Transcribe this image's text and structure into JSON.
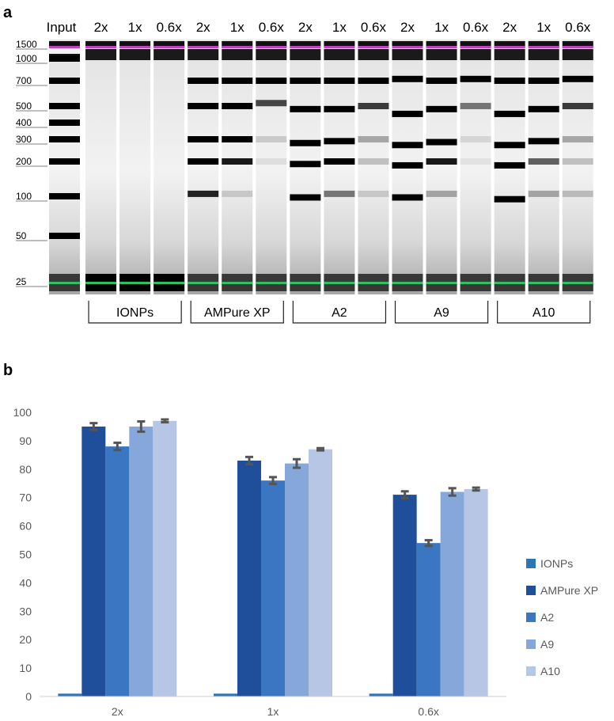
{
  "panel_a": {
    "label": "a",
    "lane_headers": [
      "Input",
      "2x",
      "1x",
      "0.6x",
      "2x",
      "1x",
      "0.6x",
      "2x",
      "1x",
      "0.6x",
      "2x",
      "1x",
      "0.6x",
      "2x",
      "1x",
      "0.6x"
    ],
    "ladder_labels": [
      "1500",
      "1000",
      "700",
      "500",
      "400",
      "300",
      "200",
      "100",
      "50",
      "25"
    ],
    "ladder_sizes_bp": [
      1500,
      1000,
      700,
      500,
      400,
      300,
      200,
      100,
      50,
      25
    ],
    "groups": [
      "IONPs",
      "AMPure XP",
      "A2",
      "A9",
      "A10"
    ],
    "marker_colors": {
      "upper": "#c040c0",
      "lower": "#30c060"
    }
  },
  "panel_b": {
    "label": "b",
    "chart_data": {
      "type": "bar",
      "categories": [
        "2x",
        "1x",
        "0.6x"
      ],
      "series": [
        {
          "name": "IONPs",
          "values": [
            1,
            1,
            1
          ],
          "errors": [
            0,
            0,
            0
          ],
          "color": "#2e75b6"
        },
        {
          "name": "AMPure XP",
          "values": [
            95,
            83,
            71
          ],
          "errors": [
            1.2,
            1.3,
            1.2
          ],
          "color": "#1f4e9a"
        },
        {
          "name": "A2",
          "values": [
            88,
            76,
            54
          ],
          "errors": [
            1.3,
            1.2,
            1.0
          ],
          "color": "#3a76c2"
        },
        {
          "name": "A9",
          "values": [
            95,
            82,
            72
          ],
          "errors": [
            1.8,
            1.5,
            1.3
          ],
          "color": "#86a7d9"
        },
        {
          "name": "A10",
          "values": [
            97,
            87,
            73
          ],
          "errors": [
            0.5,
            0.4,
            0.5
          ],
          "color": "#b8c6e6"
        }
      ],
      "yticks": [
        "0",
        "10",
        "20",
        "30",
        "40",
        "50",
        "60",
        "70",
        "80",
        "90",
        "100"
      ],
      "ylim": [
        0,
        100
      ],
      "xlabel": "",
      "ylabel": "",
      "grid": false,
      "legend": "right",
      "error_bar_color": "#555555"
    }
  }
}
